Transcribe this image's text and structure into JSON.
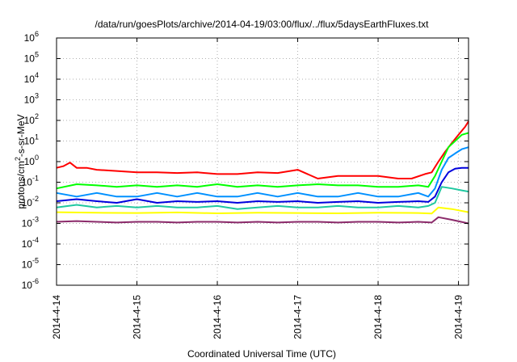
{
  "chart_data": {
    "type": "line",
    "title": "/data/run/goesPlots/archive/2014-04-19/03:00/flux/../flux/5daysEarthFluxes.txt",
    "xlabel": "Coordinated Universal Time (UTC)",
    "ylabel": "protons/cm²-s-sr-MeV",
    "ylabel_parts": {
      "pre": "protons/cm",
      "sup": "2",
      "post": "-s-sr-MeV"
    },
    "y_scale": "log",
    "ylim": [
      1e-06,
      1000000.0
    ],
    "y_ticks": [
      {
        "base": "10",
        "exp": "-6",
        "value": 1e-06
      },
      {
        "base": "10",
        "exp": "-5",
        "value": 1e-05
      },
      {
        "base": "10",
        "exp": "-4",
        "value": 0.0001
      },
      {
        "base": "10",
        "exp": "-3",
        "value": 0.001
      },
      {
        "base": "10",
        "exp": "-2",
        "value": 0.01
      },
      {
        "base": "10",
        "exp": "-1",
        "value": 0.1
      },
      {
        "base": "10",
        "exp": "0",
        "value": 1
      },
      {
        "base": "10",
        "exp": "1",
        "value": 10
      },
      {
        "base": "10",
        "exp": "2",
        "value": 100
      },
      {
        "base": "10",
        "exp": "3",
        "value": 1000
      },
      {
        "base": "10",
        "exp": "4",
        "value": 10000
      },
      {
        "base": "10",
        "exp": "5",
        "value": 100000
      },
      {
        "base": "10",
        "exp": "6",
        "value": 1000000
      }
    ],
    "xlim": [
      "2014-04-14T00:00",
      "2014-04-19T03:00"
    ],
    "x_ticks": [
      {
        "label": "2014-4-14",
        "value": "2014-04-14T00:00"
      },
      {
        "label": "2014-4-15",
        "value": "2014-04-15T00:00"
      },
      {
        "label": "2014-4-16",
        "value": "2014-04-16T00:00"
      },
      {
        "label": "2014-4-17",
        "value": "2014-04-17T00:00"
      },
      {
        "label": "2014-4-18",
        "value": "2014-04-18T00:00"
      },
      {
        "label": "2014-4-19",
        "value": "2014-04-19T00:00"
      }
    ],
    "grid": true,
    "series": [
      {
        "color": "#ff0000",
        "x": [
          "2014-04-14T00:00",
          "2014-04-14T02:00",
          "2014-04-14T04:00",
          "2014-04-14T06:00",
          "2014-04-14T09:00",
          "2014-04-14T12:00",
          "2014-04-14T18:00",
          "2014-04-15T00:00",
          "2014-04-15T06:00",
          "2014-04-15T12:00",
          "2014-04-15T18:00",
          "2014-04-16T00:00",
          "2014-04-16T06:00",
          "2014-04-16T12:00",
          "2014-04-16T18:00",
          "2014-04-17T00:00",
          "2014-04-17T06:00",
          "2014-04-17T12:00",
          "2014-04-17T18:00",
          "2014-04-18T00:00",
          "2014-04-18T06:00",
          "2014-04-18T10:00",
          "2014-04-18T14:00",
          "2014-04-18T16:00",
          "2014-04-18T18:00",
          "2014-04-18T20:00",
          "2014-04-18T22:00",
          "2014-04-19T00:00",
          "2014-04-19T02:00",
          "2014-04-19T03:00"
        ],
        "y": [
          0.5,
          0.6,
          0.9,
          0.5,
          0.5,
          0.4,
          0.35,
          0.3,
          0.3,
          0.28,
          0.3,
          0.25,
          0.25,
          0.3,
          0.28,
          0.4,
          0.15,
          0.2,
          0.2,
          0.2,
          0.15,
          0.15,
          0.25,
          0.3,
          1,
          3,
          8,
          20,
          50,
          90
        ]
      },
      {
        "color": "#00ff00",
        "x": [
          "2014-04-14T00:00",
          "2014-04-14T06:00",
          "2014-04-14T12:00",
          "2014-04-14T18:00",
          "2014-04-15T00:00",
          "2014-04-15T06:00",
          "2014-04-15T12:00",
          "2014-04-15T18:00",
          "2014-04-16T00:00",
          "2014-04-16T06:00",
          "2014-04-16T12:00",
          "2014-04-16T18:00",
          "2014-04-17T00:00",
          "2014-04-17T06:00",
          "2014-04-17T12:00",
          "2014-04-17T18:00",
          "2014-04-18T00:00",
          "2014-04-18T06:00",
          "2014-04-18T12:00",
          "2014-04-18T15:00",
          "2014-04-18T17:00",
          "2014-04-18T19:00",
          "2014-04-18T21:00",
          "2014-04-18T23:00",
          "2014-04-19T01:00",
          "2014-04-19T03:00"
        ],
        "y": [
          0.05,
          0.08,
          0.07,
          0.06,
          0.07,
          0.06,
          0.07,
          0.06,
          0.08,
          0.06,
          0.07,
          0.06,
          0.07,
          0.08,
          0.07,
          0.07,
          0.06,
          0.06,
          0.07,
          0.06,
          0.2,
          1,
          5,
          10,
          20,
          25
        ]
      },
      {
        "color": "#0090ff",
        "x": [
          "2014-04-14T00:00",
          "2014-04-14T06:00",
          "2014-04-14T12:00",
          "2014-04-14T18:00",
          "2014-04-15T00:00",
          "2014-04-15T06:00",
          "2014-04-15T12:00",
          "2014-04-15T18:00",
          "2014-04-16T00:00",
          "2014-04-16T06:00",
          "2014-04-16T12:00",
          "2014-04-16T18:00",
          "2014-04-17T00:00",
          "2014-04-17T06:00",
          "2014-04-17T12:00",
          "2014-04-17T18:00",
          "2014-04-18T00:00",
          "2014-04-18T06:00",
          "2014-04-18T12:00",
          "2014-04-18T15:00",
          "2014-04-18T17:00",
          "2014-04-18T19:00",
          "2014-04-18T21:00",
          "2014-04-18T23:00",
          "2014-04-19T01:00",
          "2014-04-19T03:00"
        ],
        "y": [
          0.03,
          0.02,
          0.03,
          0.02,
          0.02,
          0.03,
          0.02,
          0.03,
          0.02,
          0.02,
          0.03,
          0.02,
          0.03,
          0.02,
          0.02,
          0.03,
          0.02,
          0.02,
          0.03,
          0.02,
          0.05,
          0.4,
          1.5,
          2.5,
          4,
          5
        ]
      },
      {
        "color": "#0000dd",
        "x": [
          "2014-04-14T00:00",
          "2014-04-14T06:00",
          "2014-04-14T12:00",
          "2014-04-14T18:00",
          "2014-04-15T00:00",
          "2014-04-15T06:00",
          "2014-04-15T12:00",
          "2014-04-15T18:00",
          "2014-04-16T00:00",
          "2014-04-16T06:00",
          "2014-04-16T12:00",
          "2014-04-16T18:00",
          "2014-04-17T00:00",
          "2014-04-17T06:00",
          "2014-04-17T12:00",
          "2014-04-17T18:00",
          "2014-04-18T00:00",
          "2014-04-18T06:00",
          "2014-04-18T12:00",
          "2014-04-18T15:00",
          "2014-04-18T17:00",
          "2014-04-18T19:00",
          "2014-04-18T21:00",
          "2014-04-18T23:00",
          "2014-04-19T01:00",
          "2014-04-19T03:00"
        ],
        "y": [
          0.012,
          0.015,
          0.012,
          0.01,
          0.015,
          0.01,
          0.012,
          0.011,
          0.012,
          0.01,
          0.012,
          0.011,
          0.012,
          0.01,
          0.011,
          0.012,
          0.01,
          0.011,
          0.012,
          0.011,
          0.02,
          0.1,
          0.3,
          0.45,
          0.5,
          0.5
        ]
      },
      {
        "color": "#20c8a0",
        "x": [
          "2014-04-14T00:00",
          "2014-04-14T06:00",
          "2014-04-14T12:00",
          "2014-04-14T18:00",
          "2014-04-15T00:00",
          "2014-04-15T06:00",
          "2014-04-15T12:00",
          "2014-04-15T18:00",
          "2014-04-16T00:00",
          "2014-04-16T06:00",
          "2014-04-16T12:00",
          "2014-04-16T18:00",
          "2014-04-17T00:00",
          "2014-04-17T06:00",
          "2014-04-17T12:00",
          "2014-04-17T18:00",
          "2014-04-18T00:00",
          "2014-04-18T06:00",
          "2014-04-18T12:00",
          "2014-04-18T15:00",
          "2014-04-18T17:00",
          "2014-04-18T19:00",
          "2014-04-18T22:00",
          "2014-04-19T01:00",
          "2014-04-19T03:00"
        ],
        "y": [
          0.006,
          0.008,
          0.006,
          0.007,
          0.006,
          0.007,
          0.006,
          0.006,
          0.007,
          0.005,
          0.006,
          0.007,
          0.006,
          0.006,
          0.007,
          0.006,
          0.006,
          0.007,
          0.006,
          0.007,
          0.01,
          0.06,
          0.05,
          0.04,
          0.035
        ]
      },
      {
        "color": "#ffff00",
        "x": [
          "2014-04-14T00:00",
          "2014-04-14T12:00",
          "2014-04-15T00:00",
          "2014-04-15T12:00",
          "2014-04-16T00:00",
          "2014-04-16T12:00",
          "2014-04-17T00:00",
          "2014-04-17T12:00",
          "2014-04-18T00:00",
          "2014-04-18T12:00",
          "2014-04-18T16:00",
          "2014-04-18T18:00",
          "2014-04-18T22:00",
          "2014-04-19T03:00"
        ],
        "y": [
          0.0035,
          0.0033,
          0.0032,
          0.0034,
          0.0031,
          0.0033,
          0.0032,
          0.0031,
          0.0033,
          0.0032,
          0.003,
          0.006,
          0.005,
          0.0035
        ]
      },
      {
        "color": "#8b2a6a",
        "x": [
          "2014-04-14T00:00",
          "2014-04-14T06:00",
          "2014-04-14T12:00",
          "2014-04-14T18:00",
          "2014-04-15T00:00",
          "2014-04-15T06:00",
          "2014-04-15T12:00",
          "2014-04-15T18:00",
          "2014-04-16T00:00",
          "2014-04-16T06:00",
          "2014-04-16T12:00",
          "2014-04-16T18:00",
          "2014-04-17T00:00",
          "2014-04-17T06:00",
          "2014-04-17T12:00",
          "2014-04-17T18:00",
          "2014-04-18T00:00",
          "2014-04-18T06:00",
          "2014-04-18T12:00",
          "2014-04-18T16:00",
          "2014-04-18T18:00",
          "2014-04-18T22:00",
          "2014-04-19T03:00"
        ],
        "y": [
          0.0012,
          0.0013,
          0.0012,
          0.0011,
          0.0012,
          0.0012,
          0.0011,
          0.0012,
          0.0012,
          0.0011,
          0.0012,
          0.0011,
          0.0012,
          0.0012,
          0.0011,
          0.0012,
          0.0012,
          0.0011,
          0.0012,
          0.0011,
          0.002,
          0.0015,
          0.001
        ]
      }
    ]
  }
}
